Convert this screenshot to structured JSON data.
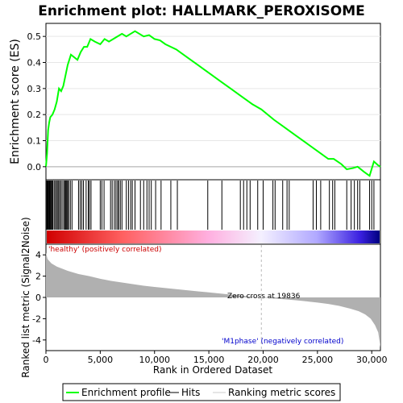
{
  "chart_data": {
    "type": "line",
    "title": "Enrichment plot: HALLMARK_PEROXISOME",
    "top_panel": {
      "ylabel": "Enrichment score (ES)",
      "ylim": [
        -0.05,
        0.55
      ],
      "yticks": [
        0.0,
        0.1,
        0.2,
        0.3,
        0.4,
        0.5
      ],
      "ytick_labels": [
        "0.0",
        "0.1",
        "0.2",
        "0.3",
        "0.4",
        "0.5"
      ],
      "series": [
        {
          "name": "Enrichment profile",
          "color": "#00ff00",
          "points": [
            [
              0,
              0.0
            ],
            [
              100,
              0.05
            ],
            [
              200,
              0.14
            ],
            [
              300,
              0.17
            ],
            [
              400,
              0.19
            ],
            [
              600,
              0.2
            ],
            [
              800,
              0.22
            ],
            [
              1000,
              0.25
            ],
            [
              1200,
              0.3
            ],
            [
              1400,
              0.29
            ],
            [
              1600,
              0.31
            ],
            [
              1800,
              0.35
            ],
            [
              2000,
              0.39
            ],
            [
              2300,
              0.43
            ],
            [
              2600,
              0.42
            ],
            [
              2900,
              0.41
            ],
            [
              3200,
              0.44
            ],
            [
              3500,
              0.46
            ],
            [
              3800,
              0.46
            ],
            [
              4100,
              0.49
            ],
            [
              4500,
              0.48
            ],
            [
              5000,
              0.47
            ],
            [
              5400,
              0.49
            ],
            [
              5800,
              0.48
            ],
            [
              6200,
              0.49
            ],
            [
              6600,
              0.5
            ],
            [
              7000,
              0.51
            ],
            [
              7400,
              0.5
            ],
            [
              7800,
              0.51
            ],
            [
              8200,
              0.52
            ],
            [
              8600,
              0.51
            ],
            [
              9000,
              0.5
            ],
            [
              9500,
              0.505
            ],
            [
              10000,
              0.49
            ],
            [
              10500,
              0.485
            ],
            [
              11000,
              0.47
            ],
            [
              12000,
              0.45
            ],
            [
              13000,
              0.42
            ],
            [
              14000,
              0.39
            ],
            [
              15000,
              0.36
            ],
            [
              16000,
              0.33
            ],
            [
              17000,
              0.3
            ],
            [
              18000,
              0.27
            ],
            [
              19000,
              0.24
            ],
            [
              19836,
              0.22
            ],
            [
              21000,
              0.18
            ],
            [
              22000,
              0.15
            ],
            [
              23000,
              0.12
            ],
            [
              24000,
              0.09
            ],
            [
              25000,
              0.06
            ],
            [
              26000,
              0.03
            ],
            [
              26500,
              0.03
            ],
            [
              27200,
              0.01
            ],
            [
              27700,
              -0.01
            ],
            [
              28300,
              -0.005
            ],
            [
              28700,
              0.0
            ],
            [
              29300,
              -0.02
            ],
            [
              29800,
              -0.035
            ],
            [
              30200,
              0.02
            ],
            [
              30600,
              0.005
            ],
            [
              30800,
              0.0
            ]
          ]
        }
      ]
    },
    "hits_panel": {
      "legend_name": "Hits",
      "hit_ranks": [
        80,
        150,
        220,
        300,
        360,
        420,
        500,
        560,
        640,
        760,
        880,
        980,
        1100,
        1180,
        1300,
        1420,
        1560,
        1700,
        1760,
        1840,
        1920,
        2000,
        2100,
        2250,
        2400,
        3000,
        3150,
        3300,
        3450,
        3700,
        3900,
        4000,
        4150,
        5000,
        5150,
        5350,
        5950,
        6100,
        6300,
        6450,
        6600,
        6700,
        6850,
        7000,
        7400,
        7600,
        7800,
        7950,
        8200,
        8700,
        9000,
        9300,
        9500,
        9700,
        10100,
        10600,
        11500,
        12100,
        14900,
        16200,
        17900,
        18200,
        18500,
        18800,
        19500,
        20000,
        20900,
        21100,
        21800,
        22200,
        22400,
        24600,
        24900,
        25300,
        26100,
        26400,
        26600,
        27700,
        28100,
        28400,
        28700,
        28900,
        29800,
        30000,
        30200
      ],
      "color_bar_stops": [
        {
          "rank": 0,
          "color": "#d00000"
        },
        {
          "rank": 7000,
          "color": "#ff6060"
        },
        {
          "rank": 15000,
          "color": "#ffb0e0"
        },
        {
          "rank": 19836,
          "color": "#f4f0ff"
        },
        {
          "rank": 25000,
          "color": "#b0a8ff"
        },
        {
          "rank": 29000,
          "color": "#3a20e0"
        },
        {
          "rank": 30800,
          "color": "#000080"
        }
      ]
    },
    "metric_panel": {
      "legend_name": "Ranking metric scores",
      "ylabel": "Ranked list metric (Signal2Noise)",
      "ylim": [
        -5,
        5
      ],
      "yticks": [
        -4,
        -2,
        0,
        2,
        4
      ],
      "ytick_labels": [
        "-4",
        "-2",
        "0",
        "2",
        "4"
      ],
      "fill_color": "#b0b0b0",
      "points": [
        [
          0,
          4.2
        ],
        [
          150,
          3.6
        ],
        [
          500,
          3.2
        ],
        [
          1000,
          2.9
        ],
        [
          2000,
          2.5
        ],
        [
          3000,
          2.2
        ],
        [
          4000,
          2.0
        ],
        [
          5000,
          1.75
        ],
        [
          6000,
          1.55
        ],
        [
          7000,
          1.4
        ],
        [
          8000,
          1.25
        ],
        [
          9000,
          1.1
        ],
        [
          10000,
          0.98
        ],
        [
          11000,
          0.88
        ],
        [
          12000,
          0.78
        ],
        [
          13000,
          0.67
        ],
        [
          14000,
          0.57
        ],
        [
          15000,
          0.47
        ],
        [
          16000,
          0.37
        ],
        [
          17000,
          0.27
        ],
        [
          18000,
          0.17
        ],
        [
          19000,
          0.07
        ],
        [
          19836,
          0.0
        ],
        [
          21000,
          -0.1
        ],
        [
          22000,
          -0.18
        ],
        [
          23000,
          -0.27
        ],
        [
          24000,
          -0.37
        ],
        [
          25000,
          -0.48
        ],
        [
          26000,
          -0.62
        ],
        [
          27000,
          -0.8
        ],
        [
          28000,
          -1.05
        ],
        [
          28800,
          -1.3
        ],
        [
          29400,
          -1.6
        ],
        [
          29900,
          -2.0
        ],
        [
          30300,
          -2.6
        ],
        [
          30600,
          -3.3
        ],
        [
          30800,
          -4.7
        ]
      ],
      "positive_label": "'healthy' (positively correlated)",
      "negative_label": "'M1phase' (negatively correlated)",
      "zero_cross_label": "Zero cross at 19836",
      "zero_cross_rank": 19836
    },
    "xlabel": "Rank in Ordered Dataset",
    "xlim": [
      0,
      30800
    ],
    "xticks": [
      0,
      5000,
      10000,
      15000,
      20000,
      25000,
      30000
    ],
    "xtick_labels": [
      "0",
      "5,000",
      "10,000",
      "15,000",
      "20,000",
      "25,000",
      "30,000"
    ],
    "legend": {
      "entries": [
        "Enrichment profile",
        "Hits",
        "Ranking metric scores"
      ],
      "placement": "bottom"
    },
    "colors": {
      "positive_label": "#cc0000",
      "negative_label": "#0000cc",
      "hits_line": "#000000",
      "dashed_line": "#bbbbbb"
    }
  }
}
